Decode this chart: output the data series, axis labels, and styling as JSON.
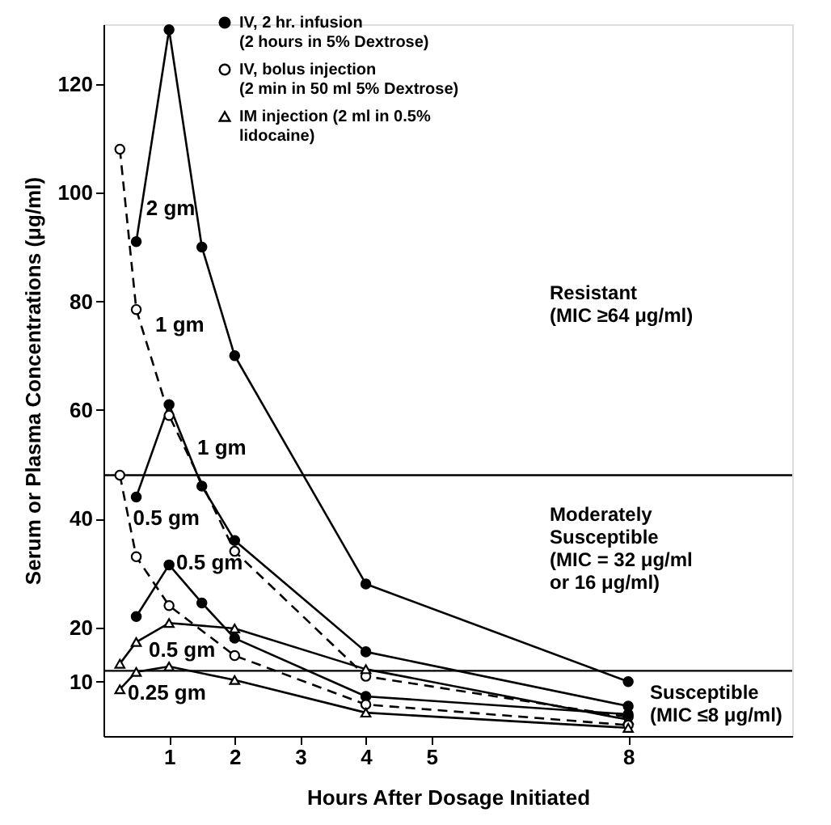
{
  "chart_data": {
    "type": "line",
    "xlabel": "Hours After Dosage Initiated",
    "ylabel": "Serum or Plasma Concentrations (μg/ml)",
    "xlim": [
      0,
      10.5
    ],
    "xticks": [
      1,
      2,
      3,
      4,
      5,
      8
    ],
    "ylim": [
      0,
      131
    ],
    "yticks": [
      10,
      20,
      40,
      60,
      80,
      100,
      120
    ],
    "grid": false,
    "legend": "top",
    "series": [
      {
        "name": "IV, 2 hr. infusion\n(2 hours in 5% Dextrose)",
        "color": "#000000",
        "marker": "circle",
        "line_style": "solid",
        "x": [
          0.5,
          1,
          1.5,
          2,
          4,
          8
        ],
        "values": [
          91,
          130,
          90,
          70,
          28,
          10
        ]
      },
      {
        "color": "#000000",
        "marker": "circle",
        "line_style": "solid",
        "x": [
          0.5,
          1,
          1.5,
          2,
          4,
          8
        ],
        "values": [
          44,
          61,
          46,
          36,
          15.5,
          5.5
        ]
      },
      {
        "color": "#000000",
        "marker": "circle",
        "line_style": "solid",
        "x": [
          0.5,
          1,
          1.5,
          2,
          4,
          8
        ],
        "values": [
          22,
          31.5,
          24.5,
          18,
          7.3,
          4
        ]
      },
      {
        "name": "IV, bolus injection\n(2 min in 50 ml 5% Dextrose)",
        "color": "#000000",
        "marker": "circle",
        "line_style": "dashed",
        "x": [
          0.25,
          0.5,
          1,
          2,
          4,
          8
        ],
        "values": [
          108,
          78.5,
          59,
          34,
          11,
          3.5
        ]
      },
      {
        "color": "#000000",
        "marker": "circle",
        "line_style": "dashed",
        "x": [
          0.25,
          0.5,
          1,
          2,
          4,
          8
        ],
        "values": [
          48,
          33,
          24,
          14.8,
          5.8,
          2
        ]
      },
      {
        "name": "IM injection (2 ml in 0.5%\nlidocaine)",
        "color": "#000000",
        "marker": "triangle",
        "line_style": "solid",
        "x": [
          0.25,
          0.5,
          1,
          2,
          4,
          8
        ],
        "values": [
          13.3,
          17.3,
          20.8,
          19.8,
          12.3,
          3
        ]
      },
      {
        "color": "#000000",
        "marker": "triangle",
        "line_style": "solid",
        "x": [
          0.25,
          0.5,
          1,
          2,
          4,
          8
        ],
        "values": [
          8.6,
          11.8,
          12.8,
          10.3,
          4.3,
          1.5
        ]
      }
    ],
    "ref_lines": [
      {
        "axis": "y",
        "value": 48,
        "color": "#000000"
      },
      {
        "axis": "y",
        "value": 12,
        "color": "#000000"
      }
    ],
    "annotations": [
      {
        "text": "2 gm",
        "x": 0.65,
        "y": 97
      },
      "1 gm",
      "1 gm",
      {
        "text": "0.5 gm",
        "x": 0.45,
        "y": 40
      },
      {
        "text": "0.5 gm",
        "x": 1.11,
        "y": 31.8
      },
      "0.5 gm",
      {
        "text": "0.25 gm",
        "x": 0.37,
        "y": 7.9
      },
      "Resistant\n(MIC ≥64 μg/ml)",
      "Moderately\nSusceptible\n(MIC = 32 μg/ml\n      or 16 μg/ml)",
      "Susceptible\n(MIC ≤8 μg/ml)"
    ]
  }
}
